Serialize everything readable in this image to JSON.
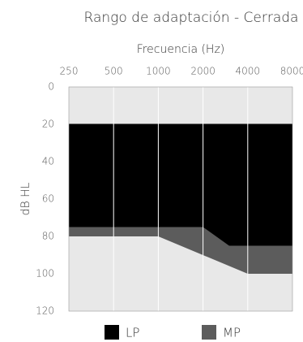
{
  "chart_data": {
    "type": "range-area",
    "title": "Rango de adaptación - Cerrada",
    "x_label": "Frecuencia (Hz)",
    "y_label": "dB HL",
    "log_x": true,
    "y_inverted": true,
    "xlim": [
      250,
      8000
    ],
    "xticks": [
      250,
      500,
      1000,
      2000,
      4000,
      8000
    ],
    "ylim": [
      0,
      120
    ],
    "yticks": [
      0,
      20,
      40,
      60,
      80,
      100,
      120
    ],
    "grid": true,
    "series": [
      {
        "name": "MP",
        "color": "#5c5c5c",
        "top": 20,
        "x": [
          250,
          1000,
          4000,
          8000
        ],
        "values": [
          80,
          80,
          100,
          100
        ]
      },
      {
        "name": "LP",
        "color": "#000000",
        "top": 20,
        "x": [
          250,
          2000,
          3000,
          8000
        ],
        "values": [
          75,
          75,
          85,
          85
        ]
      }
    ],
    "legend_order": [
      "LP",
      "MP"
    ]
  }
}
